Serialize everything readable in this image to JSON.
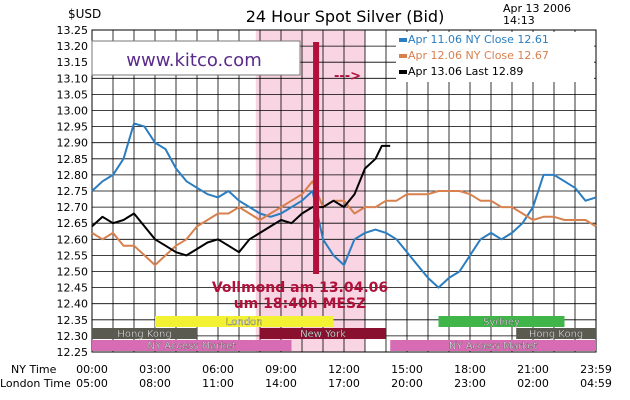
{
  "header": {
    "unit": "$USD",
    "title": "24 Hour Spot Silver (Bid)",
    "date": "Apr 13 2006",
    "time": "14:13"
  },
  "watermark": "www.kitco.com",
  "arrow_text": "--->",
  "annotation": {
    "line1": "Vollmond am 13.04.06",
    "line2": "um 18:40h MESZ",
    "color": "#b0103a"
  },
  "time_rows": {
    "ny_label": "NY Time",
    "london_label": "London Time"
  },
  "markets": {
    "row1": [
      {
        "label": "London",
        "color": "#f2f232",
        "start": 3.0,
        "end": 11.5
      },
      {
        "label": "Sydney",
        "color": "#3fb54a",
        "start": 16.5,
        "end": 22.5
      }
    ],
    "row2": [
      {
        "label": "Hong Kong",
        "color": "#5a5a50",
        "start": 0,
        "end": 5.0
      },
      {
        "label": "New York",
        "color": "#8a1030",
        "start": 8.0,
        "end": 14.0
      },
      {
        "label": "Hong Kong",
        "color": "#5a5a50",
        "start": 20.2,
        "end": 24.0
      }
    ],
    "row3": [
      {
        "label": "NY Access Market",
        "color": "#d86cb4",
        "start": 0,
        "end": 9.5
      },
      {
        "label": "NY Access Market",
        "color": "#d86cb4",
        "start": 14.2,
        "end": 24.0
      }
    ]
  },
  "chart_data": {
    "type": "line",
    "title": "24 Hour Spot Silver (Bid)",
    "ylabel": "$USD",
    "ylim": [
      12.25,
      13.25
    ],
    "yticks": [
      "12.25",
      "12.30",
      "12.35",
      "12.40",
      "12.45",
      "12.50",
      "12.55",
      "12.60",
      "12.65",
      "12.70",
      "12.75",
      "12.80",
      "12.85",
      "12.90",
      "12.95",
      "13.00",
      "13.05",
      "13.10",
      "13.15",
      "13.20",
      "13.25"
    ],
    "xlim": [
      0,
      24
    ],
    "x_unit": "hours since 00:00 NY Time",
    "xticks_ny": [
      "00:00",
      "03:00",
      "06:00",
      "09:00",
      "12:00",
      "15:00",
      "18:00",
      "21:00",
      "23:59"
    ],
    "xticks_london": [
      "05:00",
      "08:00",
      "11:00",
      "14:00",
      "17:00",
      "20:00",
      "23:00",
      "02:00",
      "04:59"
    ],
    "grid": true,
    "legend_position": "top-right",
    "shaded_window": {
      "start": 7.8,
      "end": 13.0,
      "color": "#f9d4e2"
    },
    "marker_time": 10.67,
    "series": [
      {
        "name": "Apr  11.06  NY Close  12.61",
        "color": "#2a7dc0",
        "x": [
          0,
          0.5,
          1,
          1.5,
          2,
          2.5,
          3,
          3.5,
          4,
          4.5,
          5,
          5.5,
          6,
          6.5,
          7,
          7.5,
          8,
          8.5,
          9,
          9.5,
          10,
          10.5,
          11,
          11.5,
          12,
          12.5,
          13,
          13.5,
          14,
          14.5,
          15,
          15.5,
          16,
          16.5,
          17,
          17.5,
          18,
          18.5,
          19,
          19.5,
          20,
          20.5,
          21,
          21.5,
          22,
          22.5,
          23,
          23.5,
          24
        ],
        "y": [
          12.75,
          12.78,
          12.8,
          12.85,
          12.96,
          12.95,
          12.9,
          12.88,
          12.82,
          12.78,
          12.76,
          12.74,
          12.73,
          12.75,
          12.72,
          12.7,
          12.68,
          12.67,
          12.68,
          12.7,
          12.72,
          12.75,
          12.6,
          12.55,
          12.52,
          12.6,
          12.62,
          12.63,
          12.62,
          12.6,
          12.56,
          12.52,
          12.48,
          12.45,
          12.48,
          12.5,
          12.55,
          12.6,
          12.62,
          12.6,
          12.62,
          12.65,
          12.7,
          12.8,
          12.8,
          12.78,
          12.76,
          12.72,
          12.73
        ]
      },
      {
        "name": "Apr  12.06  NY Close  12.67",
        "color": "#d8804e",
        "x": [
          0,
          0.5,
          1,
          1.5,
          2,
          2.5,
          3,
          3.5,
          4,
          4.5,
          5,
          5.5,
          6,
          6.5,
          7,
          7.5,
          8,
          8.5,
          9,
          9.5,
          10,
          10.5,
          11,
          11.5,
          12,
          12.5,
          13,
          13.5,
          14,
          14.5,
          15,
          15.5,
          16,
          16.5,
          17,
          17.5,
          18,
          18.5,
          19,
          19.5,
          20,
          20.5,
          21,
          21.5,
          22,
          22.5,
          23,
          23.5,
          24
        ],
        "y": [
          12.62,
          12.6,
          12.62,
          12.58,
          12.58,
          12.55,
          12.52,
          12.55,
          12.58,
          12.6,
          12.64,
          12.66,
          12.68,
          12.68,
          12.7,
          12.68,
          12.66,
          12.68,
          12.7,
          12.72,
          12.74,
          12.78,
          12.7,
          12.72,
          12.72,
          12.68,
          12.7,
          12.7,
          12.72,
          12.72,
          12.74,
          12.74,
          12.74,
          12.75,
          12.75,
          12.75,
          12.74,
          12.72,
          12.72,
          12.7,
          12.7,
          12.68,
          12.66,
          12.67,
          12.67,
          12.66,
          12.66,
          12.66,
          12.64
        ]
      },
      {
        "name": "Apr  13.06  Last  12.89",
        "color": "#000000",
        "x": [
          0,
          0.5,
          1,
          1.5,
          2,
          2.5,
          3,
          3.5,
          4,
          4.5,
          5,
          5.5,
          6,
          6.5,
          7,
          7.5,
          8,
          8.5,
          9,
          9.5,
          10,
          10.5,
          11,
          11.5,
          12,
          12.5,
          13,
          13.5,
          13.8,
          14.2
        ],
        "y": [
          12.64,
          12.67,
          12.65,
          12.66,
          12.68,
          12.64,
          12.6,
          12.58,
          12.56,
          12.55,
          12.57,
          12.59,
          12.6,
          12.58,
          12.56,
          12.6,
          12.62,
          12.64,
          12.66,
          12.65,
          12.68,
          12.7,
          12.7,
          12.72,
          12.7,
          12.74,
          12.82,
          12.85,
          12.89,
          12.89
        ]
      }
    ]
  }
}
